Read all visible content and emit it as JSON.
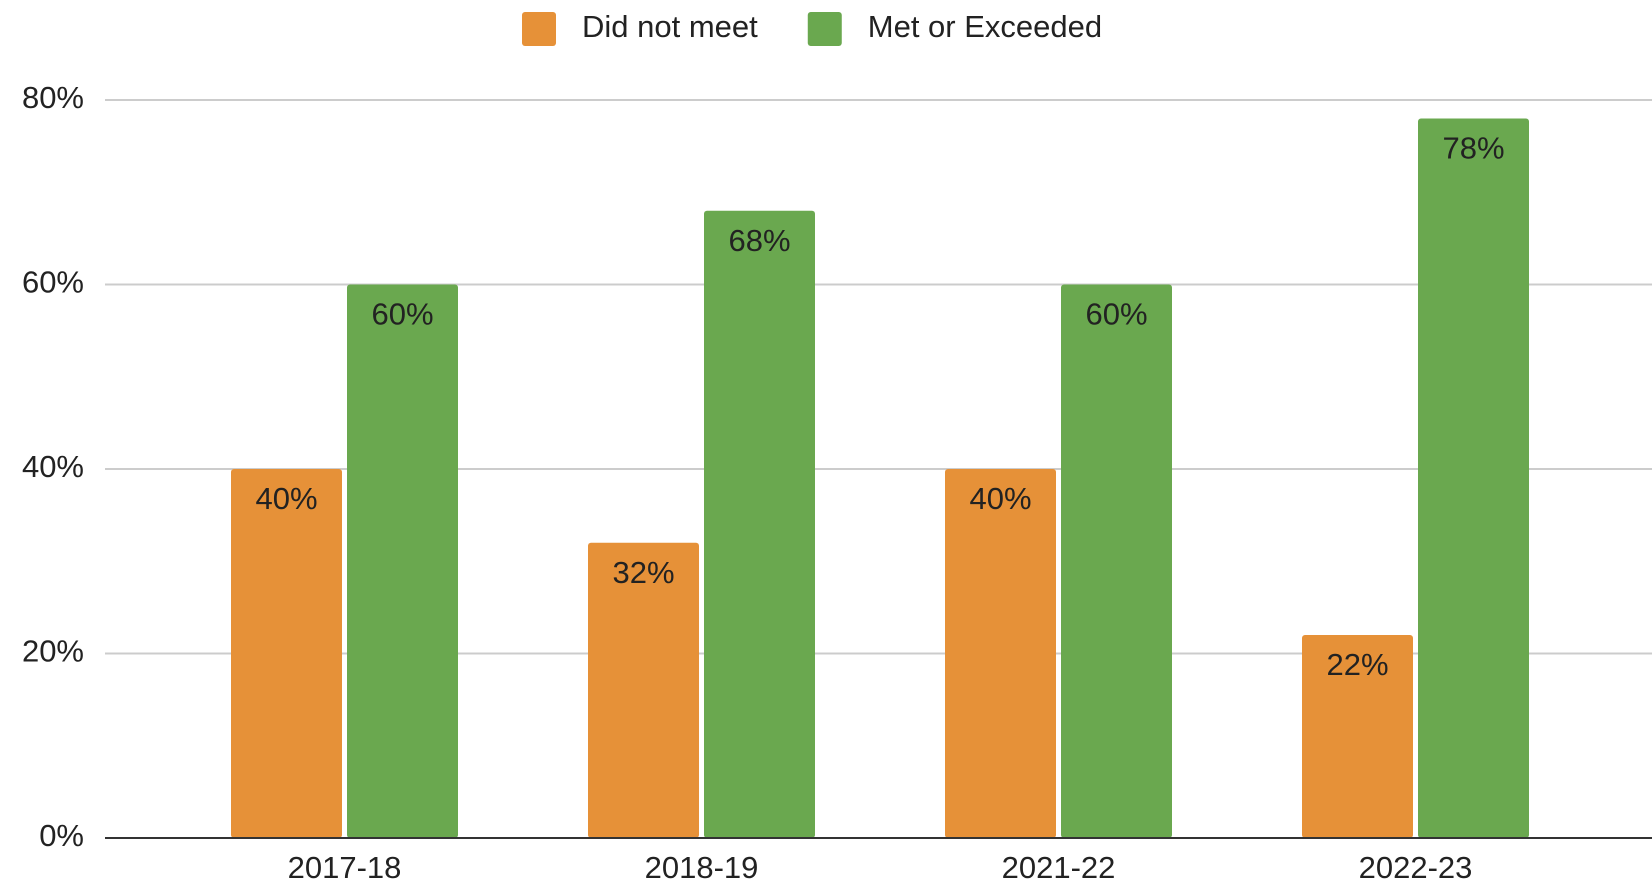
{
  "chart_data": {
    "type": "bar",
    "categories": [
      "2017-18",
      "2018-19",
      "2021-22",
      "2022-23"
    ],
    "series": [
      {
        "name": "Did not meet",
        "color": "#e69138",
        "values": [
          40,
          32,
          40,
          22
        ],
        "value_labels": [
          "40%",
          "32%",
          "40%",
          "22%"
        ]
      },
      {
        "name": "Met or Exceeded",
        "color": "#6aa84f",
        "values": [
          60,
          68,
          60,
          78
        ],
        "value_labels": [
          "60%",
          "68%",
          "60%",
          "78%"
        ]
      }
    ],
    "ylim": [
      0,
      80
    ],
    "yticks": [
      {
        "value": 0,
        "label": "0%"
      },
      {
        "value": 20,
        "label": "20%"
      },
      {
        "value": 40,
        "label": "40%"
      },
      {
        "value": 60,
        "label": "60%"
      },
      {
        "value": 80,
        "label": "80%"
      }
    ],
    "grid": true,
    "legend": "top"
  }
}
